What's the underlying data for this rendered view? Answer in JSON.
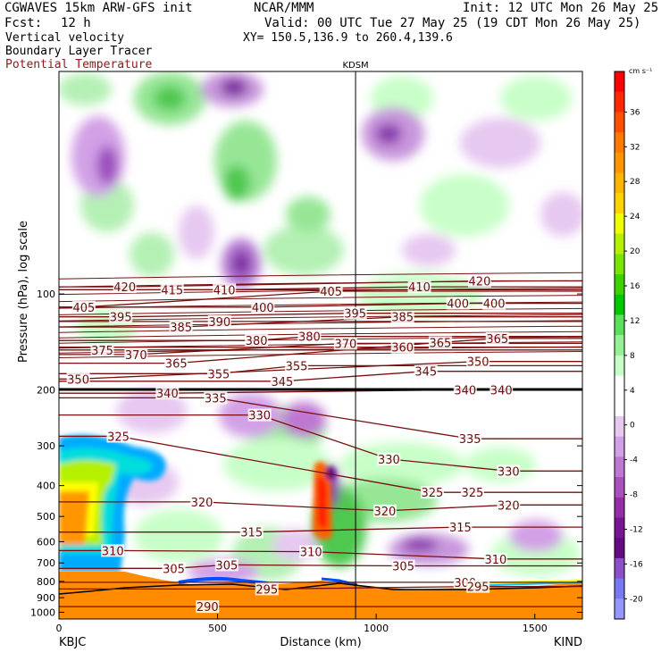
{
  "header": {
    "title_left": "CGWAVES 15km ARW-GFS init",
    "org": "NCAR/MMM",
    "init": "Init: 12 UTC Mon 26 May 25",
    "fcst_label": "Fcst:",
    "fcst_value": "12 h",
    "valid": "Valid: 00 UTC Tue 27 May 25 (19 CDT Mon 26 May 25)",
    "field1": "Vertical velocity",
    "field2": "Boundary Layer Tracer",
    "field3": "Potential Temperature",
    "xy": "XY= 150.5,136.9 to 260.4,139.6",
    "field3_color": "#8b1a1a"
  },
  "chart_data": {
    "type": "heatmap",
    "xlabel": "Distance (km)",
    "ylabel": "Pressure (hPa), log scale",
    "x_ticks": [
      "0",
      "500",
      "1000",
      "1500"
    ],
    "x_tick_values": [
      0,
      500,
      1000,
      1500
    ],
    "xlim": [
      0,
      1650
    ],
    "y_ticks": [
      "100",
      "200",
      "300",
      "400",
      "500",
      "600",
      "700",
      "800",
      "900",
      "1000"
    ],
    "y_tick_values": [
      100,
      200,
      300,
      400,
      500,
      600,
      700,
      800,
      900,
      1000
    ],
    "ylim": [
      1050,
      20
    ],
    "y_scale": "log",
    "endpoints": {
      "left": "KBJC",
      "right": "KIND"
    },
    "station_marker": {
      "label": "KDSM",
      "x": 935
    },
    "colorbar": {
      "unit": "cm s⁻¹",
      "labels": [
        "36",
        "32",
        "28",
        "24",
        "20",
        "16",
        "12",
        "8",
        "4",
        "0",
        "-4",
        "-8",
        "-12",
        "-16",
        "-20"
      ],
      "colors": [
        "#ff0000",
        "#ff2800",
        "#ff5000",
        "#ff7800",
        "#ff9600",
        "#ffb400",
        "#ffd200",
        "#f0ff00",
        "#b4f000",
        "#78e600",
        "#3cd200",
        "#00c800",
        "#5ae05a",
        "#96f096",
        "#c8ffc8",
        "#ffffff",
        "#ffffff",
        "#e6c8f0",
        "#d2a0e6",
        "#be78d2",
        "#aa50be",
        "#962ca8",
        "#781496",
        "#640a82",
        "#8c50c8",
        "#7878f0",
        "#9696ff"
      ]
    },
    "theta_labels": [
      {
        "v": "420",
        "x": 148,
        "p": 95
      },
      {
        "v": "415",
        "x": 207,
        "p": 97
      },
      {
        "v": "410",
        "x": 272,
        "p": 97
      },
      {
        "v": "405",
        "x": 405,
        "p": 98
      },
      {
        "v": "410",
        "x": 515,
        "p": 95
      },
      {
        "v": "420",
        "x": 590,
        "p": 91
      },
      {
        "v": "405",
        "x": 97,
        "p": 110
      },
      {
        "v": "395",
        "x": 143,
        "p": 118
      },
      {
        "v": "400",
        "x": 320,
        "p": 110
      },
      {
        "v": "395",
        "x": 435,
        "p": 115
      },
      {
        "v": "385",
        "x": 494,
        "p": 118
      },
      {
        "v": "400",
        "x": 563,
        "p": 107
      },
      {
        "v": "400",
        "x": 608,
        "p": 107
      },
      {
        "v": "385",
        "x": 218,
        "p": 127
      },
      {
        "v": "390",
        "x": 266,
        "p": 122
      },
      {
        "v": "380",
        "x": 312,
        "p": 140
      },
      {
        "v": "380",
        "x": 378,
        "p": 136
      },
      {
        "v": "370",
        "x": 423,
        "p": 143
      },
      {
        "v": "360",
        "x": 494,
        "p": 147
      },
      {
        "v": "365",
        "x": 541,
        "p": 142
      },
      {
        "v": "365",
        "x": 612,
        "p": 138
      },
      {
        "v": "375",
        "x": 120,
        "p": 150
      },
      {
        "v": "370",
        "x": 162,
        "p": 155
      },
      {
        "v": "365",
        "x": 212,
        "p": 165
      },
      {
        "v": "355",
        "x": 265,
        "p": 178
      },
      {
        "v": "345",
        "x": 344,
        "p": 188
      },
      {
        "v": "355",
        "x": 362,
        "p": 168
      },
      {
        "v": "345",
        "x": 523,
        "p": 175
      },
      {
        "v": "350",
        "x": 588,
        "p": 163
      },
      {
        "v": "350",
        "x": 90,
        "p": 185
      },
      {
        "v": "340",
        "x": 201,
        "p": 205
      },
      {
        "v": "335",
        "x": 261,
        "p": 212
      },
      {
        "v": "330",
        "x": 316,
        "p": 240
      },
      {
        "v": "340",
        "x": 572,
        "p": 200
      },
      {
        "v": "340",
        "x": 617,
        "p": 200
      },
      {
        "v": "325",
        "x": 140,
        "p": 280
      },
      {
        "v": "335",
        "x": 578,
        "p": 285
      },
      {
        "v": "330",
        "x": 477,
        "p": 330
      },
      {
        "v": "330",
        "x": 626,
        "p": 360
      },
      {
        "v": "325",
        "x": 531,
        "p": 420
      },
      {
        "v": "325",
        "x": 581,
        "p": 420
      },
      {
        "v": "320",
        "x": 244,
        "p": 450
      },
      {
        "v": "320",
        "x": 472,
        "p": 480
      },
      {
        "v": "320",
        "x": 626,
        "p": 460
      },
      {
        "v": "315",
        "x": 306,
        "p": 560
      },
      {
        "v": "315",
        "x": 566,
        "p": 540
      },
      {
        "v": "310",
        "x": 133,
        "p": 640
      },
      {
        "v": "310",
        "x": 380,
        "p": 645
      },
      {
        "v": "310",
        "x": 610,
        "p": 680
      },
      {
        "v": "305",
        "x": 209,
        "p": 728
      },
      {
        "v": "305",
        "x": 275,
        "p": 710
      },
      {
        "v": "305",
        "x": 495,
        "p": 715
      },
      {
        "v": "300",
        "x": 572,
        "p": 805
      },
      {
        "v": "295",
        "x": 325,
        "p": 845
      },
      {
        "v": "295",
        "x": 588,
        "p": 830
      },
      {
        "v": "290",
        "x": 251,
        "p": 960
      }
    ]
  }
}
